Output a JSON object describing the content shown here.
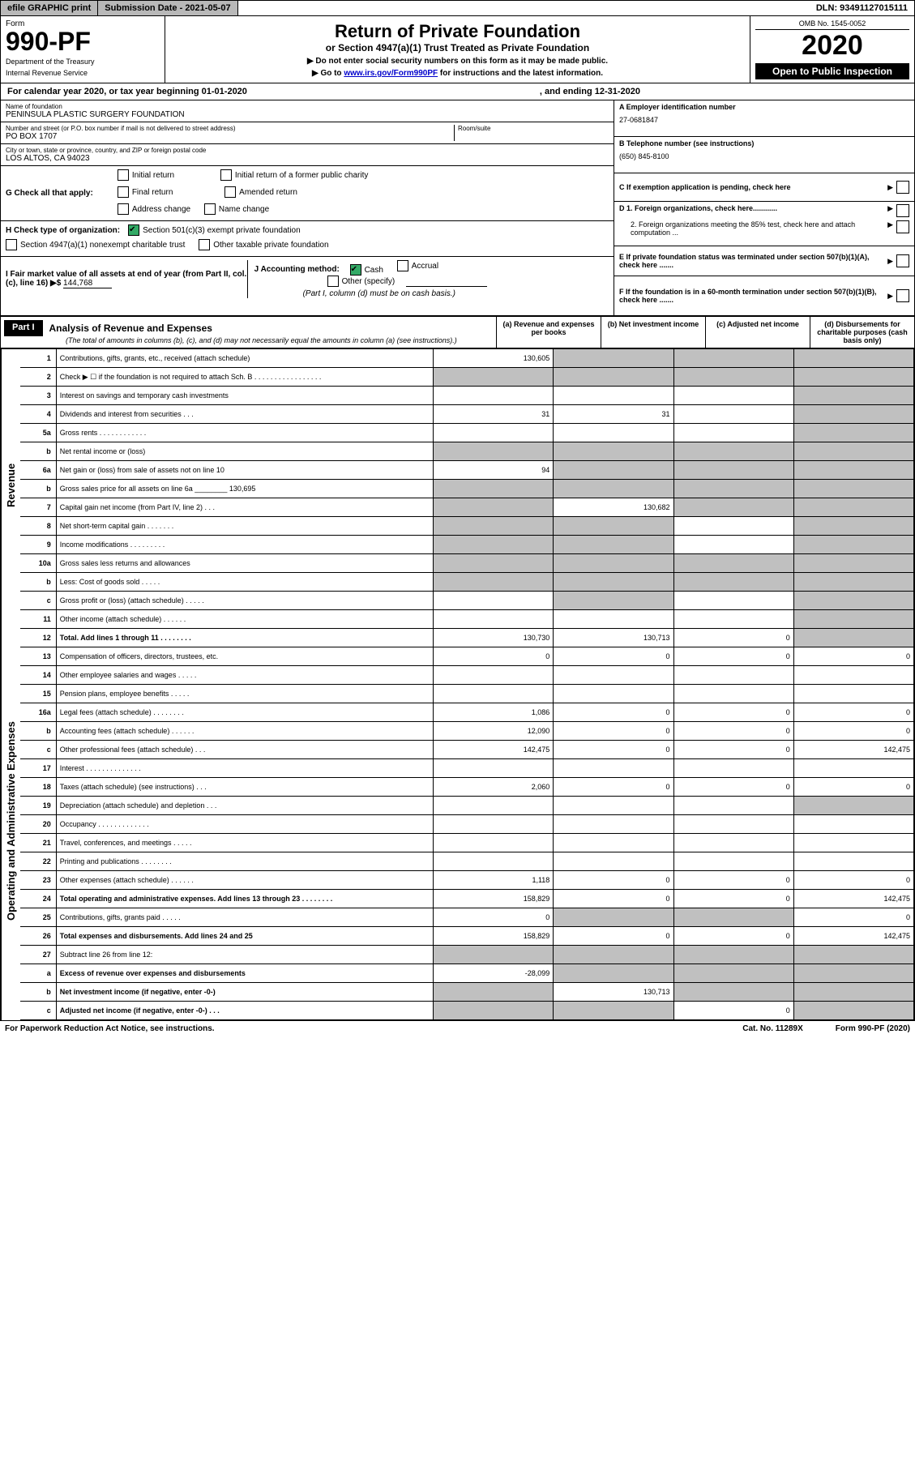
{
  "topbar": {
    "efile": "efile GRAPHIC print",
    "subdate": "Submission Date - 2021-05-07",
    "dln": "DLN: 93491127015111"
  },
  "header": {
    "form": "Form",
    "formnum": "990-PF",
    "dept": "Department of the Treasury",
    "irs": "Internal Revenue Service",
    "title": "Return of Private Foundation",
    "subtitle": "or Section 4947(a)(1) Trust Treated as Private Foundation",
    "note1": "▶ Do not enter social security numbers on this form as it may be made public.",
    "note2_pre": "▶ Go to ",
    "note2_link": "www.irs.gov/Form990PF",
    "note2_post": " for instructions and the latest information.",
    "omb": "OMB No. 1545-0052",
    "year": "2020",
    "open": "Open to Public Inspection"
  },
  "calyear": {
    "pre": "For calendar year 2020, or tax year beginning 01-01-2020",
    "end": ", and ending 12-31-2020"
  },
  "info": {
    "name_lbl": "Name of foundation",
    "name_val": "PENINSULA PLASTIC SURGERY FOUNDATION",
    "addr_lbl": "Number and street (or P.O. box number if mail is not delivered to street address)",
    "addr_val": "PO BOX 1707",
    "room_lbl": "Room/suite",
    "city_lbl": "City or town, state or province, country, and ZIP or foreign postal code",
    "city_val": "LOS ALTOS, CA  94023",
    "A_lbl": "A Employer identification number",
    "A_val": "27-0681847",
    "B_lbl": "B Telephone number (see instructions)",
    "B_val": "(650) 845-8100",
    "C_lbl": "C If exemption application is pending, check here",
    "D1_lbl": "D 1. Foreign organizations, check here............",
    "D2_lbl": "2. Foreign organizations meeting the 85% test, check here and attach computation ...",
    "E_lbl": "E If private foundation status was terminated under section 507(b)(1)(A), check here .......",
    "F_lbl": "F If the foundation is in a 60-month termination under section 507(b)(1)(B), check here .......",
    "G_lbl": "G Check all that apply:",
    "G_initial": "Initial return",
    "G_final": "Final return",
    "G_addr": "Address change",
    "G_initial_pc": "Initial return of a former public charity",
    "G_amended": "Amended return",
    "G_name": "Name change",
    "H_lbl": "H Check type of organization:",
    "H_501c3": "Section 501(c)(3) exempt private foundation",
    "H_4947": "Section 4947(a)(1) nonexempt charitable trust",
    "H_other": "Other taxable private foundation",
    "I_lbl": "I Fair market value of all assets at end of year (from Part II, col. (c), line 16) ▶$ ",
    "I_val": "144,768",
    "J_lbl": "J Accounting method:",
    "J_cash": "Cash",
    "J_accrual": "Accrual",
    "J_other": "Other (specify)",
    "J_note": "(Part I, column (d) must be on cash basis.)"
  },
  "part1": {
    "part": "Part I",
    "title": "Analysis of Revenue and Expenses",
    "subtitle": "(The total of amounts in columns (b), (c), and (d) may not necessarily equal the amounts in column (a) (see instructions).)",
    "col_a": "(a) Revenue and expenses per books",
    "col_b": "(b) Net investment income",
    "col_c": "(c) Adjusted net income",
    "col_d": "(d) Disbursements for charitable purposes (cash basis only)",
    "side_rev": "Revenue",
    "side_exp": "Operating and Administrative Expenses"
  },
  "rows": [
    {
      "n": "1",
      "d": "Contributions, gifts, grants, etc., received (attach schedule)",
      "a": "130,605",
      "b": "",
      "c": "",
      "dd": "",
      "ga": false,
      "gb": true,
      "gc": true,
      "gd": true
    },
    {
      "n": "2",
      "d": "Check ▶ ☐ if the foundation is not required to attach Sch. B  . . . . . . . . . . . . . . . . .",
      "a": "",
      "b": "",
      "c": "",
      "dd": "",
      "ga": true,
      "gb": true,
      "gc": true,
      "gd": true,
      "bold": false
    },
    {
      "n": "3",
      "d": "Interest on savings and temporary cash investments",
      "a": "",
      "b": "",
      "c": "",
      "dd": "",
      "ga": false,
      "gb": false,
      "gc": false,
      "gd": true
    },
    {
      "n": "4",
      "d": "Dividends and interest from securities  . . .",
      "a": "31",
      "b": "31",
      "c": "",
      "dd": "",
      "ga": false,
      "gb": false,
      "gc": false,
      "gd": true
    },
    {
      "n": "5a",
      "d": "Gross rents  . . . . . . . . . . . .",
      "a": "",
      "b": "",
      "c": "",
      "dd": "",
      "ga": false,
      "gb": false,
      "gc": false,
      "gd": true
    },
    {
      "n": "b",
      "d": "Net rental income or (loss)",
      "a": "",
      "b": "",
      "c": "",
      "dd": "",
      "ga": true,
      "gb": true,
      "gc": true,
      "gd": true
    },
    {
      "n": "6a",
      "d": "Net gain or (loss) from sale of assets not on line 10",
      "a": "94",
      "b": "",
      "c": "",
      "dd": "",
      "ga": false,
      "gb": true,
      "gc": true,
      "gd": true
    },
    {
      "n": "b",
      "d": "Gross sales price for all assets on line 6a ________ 130,695",
      "a": "",
      "b": "",
      "c": "",
      "dd": "",
      "ga": true,
      "gb": true,
      "gc": true,
      "gd": true
    },
    {
      "n": "7",
      "d": "Capital gain net income (from Part IV, line 2)  . . .",
      "a": "",
      "b": "130,682",
      "c": "",
      "dd": "",
      "ga": true,
      "gb": false,
      "gc": true,
      "gd": true
    },
    {
      "n": "8",
      "d": "Net short-term capital gain  . . . . . . .",
      "a": "",
      "b": "",
      "c": "",
      "dd": "",
      "ga": true,
      "gb": true,
      "gc": false,
      "gd": true
    },
    {
      "n": "9",
      "d": "Income modifications  . . . . . . . . .",
      "a": "",
      "b": "",
      "c": "",
      "dd": "",
      "ga": true,
      "gb": true,
      "gc": false,
      "gd": true
    },
    {
      "n": "10a",
      "d": "Gross sales less returns and allowances",
      "a": "",
      "b": "",
      "c": "",
      "dd": "",
      "ga": true,
      "gb": true,
      "gc": true,
      "gd": true
    },
    {
      "n": "b",
      "d": "Less: Cost of goods sold  . . . . .",
      "a": "",
      "b": "",
      "c": "",
      "dd": "",
      "ga": true,
      "gb": true,
      "gc": true,
      "gd": true
    },
    {
      "n": "c",
      "d": "Gross profit or (loss) (attach schedule)  . . . . .",
      "a": "",
      "b": "",
      "c": "",
      "dd": "",
      "ga": false,
      "gb": true,
      "gc": false,
      "gd": true
    },
    {
      "n": "11",
      "d": "Other income (attach schedule)  . . . . . .",
      "a": "",
      "b": "",
      "c": "",
      "dd": "",
      "ga": false,
      "gb": false,
      "gc": false,
      "gd": true
    },
    {
      "n": "12",
      "d": "Total. Add lines 1 through 11  . . . . . . . .",
      "a": "130,730",
      "b": "130,713",
      "c": "0",
      "dd": "",
      "ga": false,
      "gb": false,
      "gc": false,
      "gd": true,
      "bold": true
    },
    {
      "n": "13",
      "d": "Compensation of officers, directors, trustees, etc.",
      "a": "0",
      "b": "0",
      "c": "0",
      "dd": "0",
      "ga": false,
      "gb": false,
      "gc": false,
      "gd": false
    },
    {
      "n": "14",
      "d": "Other employee salaries and wages  . . . . .",
      "a": "",
      "b": "",
      "c": "",
      "dd": "",
      "ga": false,
      "gb": false,
      "gc": false,
      "gd": false
    },
    {
      "n": "15",
      "d": "Pension plans, employee benefits  . . . . .",
      "a": "",
      "b": "",
      "c": "",
      "dd": "",
      "ga": false,
      "gb": false,
      "gc": false,
      "gd": false
    },
    {
      "n": "16a",
      "d": "Legal fees (attach schedule)  . . . . . . . .",
      "a": "1,086",
      "b": "0",
      "c": "0",
      "dd": "0",
      "ga": false,
      "gb": false,
      "gc": false,
      "gd": false
    },
    {
      "n": "b",
      "d": "Accounting fees (attach schedule)  . . . . . .",
      "a": "12,090",
      "b": "0",
      "c": "0",
      "dd": "0",
      "ga": false,
      "gb": false,
      "gc": false,
      "gd": false
    },
    {
      "n": "c",
      "d": "Other professional fees (attach schedule)  . . .",
      "a": "142,475",
      "b": "0",
      "c": "0",
      "dd": "142,475",
      "ga": false,
      "gb": false,
      "gc": false,
      "gd": false
    },
    {
      "n": "17",
      "d": "Interest  . . . . . . . . . . . . . .",
      "a": "",
      "b": "",
      "c": "",
      "dd": "",
      "ga": false,
      "gb": false,
      "gc": false,
      "gd": false
    },
    {
      "n": "18",
      "d": "Taxes (attach schedule) (see instructions)  . . .",
      "a": "2,060",
      "b": "0",
      "c": "0",
      "dd": "0",
      "ga": false,
      "gb": false,
      "gc": false,
      "gd": false
    },
    {
      "n": "19",
      "d": "Depreciation (attach schedule) and depletion  . . .",
      "a": "",
      "b": "",
      "c": "",
      "dd": "",
      "ga": false,
      "gb": false,
      "gc": false,
      "gd": true
    },
    {
      "n": "20",
      "d": "Occupancy  . . . . . . . . . . . . .",
      "a": "",
      "b": "",
      "c": "",
      "dd": "",
      "ga": false,
      "gb": false,
      "gc": false,
      "gd": false
    },
    {
      "n": "21",
      "d": "Travel, conferences, and meetings  . . . . .",
      "a": "",
      "b": "",
      "c": "",
      "dd": "",
      "ga": false,
      "gb": false,
      "gc": false,
      "gd": false
    },
    {
      "n": "22",
      "d": "Printing and publications  . . . . . . . .",
      "a": "",
      "b": "",
      "c": "",
      "dd": "",
      "ga": false,
      "gb": false,
      "gc": false,
      "gd": false
    },
    {
      "n": "23",
      "d": "Other expenses (attach schedule)  . . . . . .",
      "a": "1,118",
      "b": "0",
      "c": "0",
      "dd": "0",
      "ga": false,
      "gb": false,
      "gc": false,
      "gd": false
    },
    {
      "n": "24",
      "d": "Total operating and administrative expenses. Add lines 13 through 23  . . . . . . . .",
      "a": "158,829",
      "b": "0",
      "c": "0",
      "dd": "142,475",
      "ga": false,
      "gb": false,
      "gc": false,
      "gd": false,
      "bold": true
    },
    {
      "n": "25",
      "d": "Contributions, gifts, grants paid  . . . . .",
      "a": "0",
      "b": "",
      "c": "",
      "dd": "0",
      "ga": false,
      "gb": true,
      "gc": true,
      "gd": false
    },
    {
      "n": "26",
      "d": "Total expenses and disbursements. Add lines 24 and 25",
      "a": "158,829",
      "b": "0",
      "c": "0",
      "dd": "142,475",
      "ga": false,
      "gb": false,
      "gc": false,
      "gd": false,
      "bold": true
    },
    {
      "n": "27",
      "d": "Subtract line 26 from line 12:",
      "a": "",
      "b": "",
      "c": "",
      "dd": "",
      "ga": true,
      "gb": true,
      "gc": true,
      "gd": true
    },
    {
      "n": "a",
      "d": "Excess of revenue over expenses and disbursements",
      "a": "-28,099",
      "b": "",
      "c": "",
      "dd": "",
      "ga": false,
      "gb": true,
      "gc": true,
      "gd": true,
      "bold": true
    },
    {
      "n": "b",
      "d": "Net investment income (if negative, enter -0-)",
      "a": "",
      "b": "130,713",
      "c": "",
      "dd": "",
      "ga": true,
      "gb": false,
      "gc": true,
      "gd": true,
      "bold": true
    },
    {
      "n": "c",
      "d": "Adjusted net income (if negative, enter -0-)  . . .",
      "a": "",
      "b": "",
      "c": "0",
      "dd": "",
      "ga": true,
      "gb": true,
      "gc": false,
      "gd": true,
      "bold": true
    }
  ],
  "footer": {
    "left": "For Paperwork Reduction Act Notice, see instructions.",
    "mid": "Cat. No. 11289X",
    "right": "Form 990-PF (2020)"
  }
}
